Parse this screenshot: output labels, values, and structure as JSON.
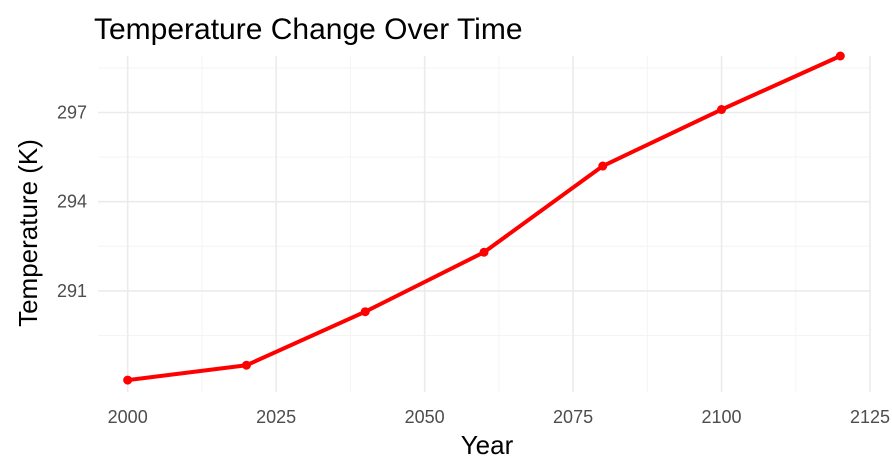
{
  "chart_data": {
    "type": "line",
    "title": "Temperature Change Over Time",
    "xlabel": "Year",
    "ylabel": "Temperature (K)",
    "xlim": [
      1995,
      2125
    ],
    "ylim": [
      287.6,
      298.9
    ],
    "x_ticks": [
      2000,
      2025,
      2050,
      2075,
      2100,
      2125
    ],
    "y_ticks": [
      291,
      294,
      297
    ],
    "grid": true,
    "legend": "none",
    "color": "#ff0000",
    "series": [
      {
        "x": [
          2000,
          2020,
          2040,
          2060,
          2080,
          2100,
          2120
        ],
        "values": [
          288.0,
          288.5,
          290.3,
          292.3,
          295.2,
          297.1,
          298.9
        ]
      }
    ]
  }
}
